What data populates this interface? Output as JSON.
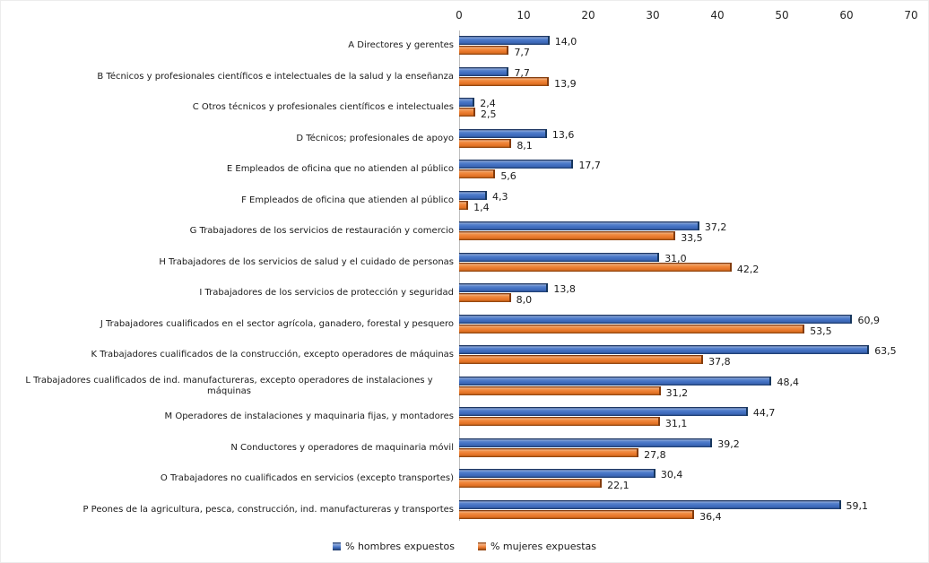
{
  "chart_data": {
    "type": "bar",
    "orientation": "horizontal",
    "title": "",
    "xlabel": "",
    "ylabel": "",
    "grid": false,
    "legend_position": "bottom-center",
    "x_axis": {
      "min": 0,
      "max": 70,
      "ticks": [
        0,
        10,
        20,
        30,
        40,
        50,
        60,
        70
      ],
      "position": "top"
    },
    "decimal_separator": ",",
    "categories": [
      "A Directores y gerentes",
      "B Técnicos y profesionales científicos e intelectuales de la salud y la enseñanza",
      "C Otros técnicos y profesionales científicos e intelectuales",
      "D Técnicos; profesionales de apoyo",
      "E Empleados de oficina que no atienden al público",
      "F Empleados de oficina que atienden al público",
      "G Trabajadores de los servicios de restauración y comercio",
      "H Trabajadores de los servicios de salud y el cuidado de personas",
      "I Trabajadores de los servicios de protección y seguridad",
      "J Trabajadores cualificados en el sector agrícola, ganadero, forestal y pesquero",
      "K Trabajadores cualificados de la construcción, excepto operadores de máquinas",
      "L Trabajadores cualificados de ind. manufactureras, excepto operadores de instalaciones y máquinas",
      "M Operadores de instalaciones y maquinaria fijas, y montadores",
      "N Conductores y operadores de maquinaria móvil",
      "O Trabajadores no cualificados en servicios (excepto transportes)",
      "P Peones de la agricultura, pesca, construcción, ind. manufactureras y transportes"
    ],
    "series": [
      {
        "name": "% hombres expuestos",
        "color": "#4472C4",
        "values": [
          14.0,
          7.7,
          2.4,
          13.6,
          17.7,
          4.3,
          37.2,
          31.0,
          13.8,
          60.9,
          63.5,
          48.4,
          44.7,
          39.2,
          30.4,
          59.1
        ]
      },
      {
        "name": "% mujeres expuestas",
        "color": "#ED7D31",
        "values": [
          7.7,
          13.9,
          2.5,
          8.1,
          5.6,
          1.4,
          33.5,
          42.2,
          8.0,
          53.5,
          37.8,
          31.2,
          31.1,
          27.8,
          22.1,
          36.4
        ]
      }
    ]
  }
}
